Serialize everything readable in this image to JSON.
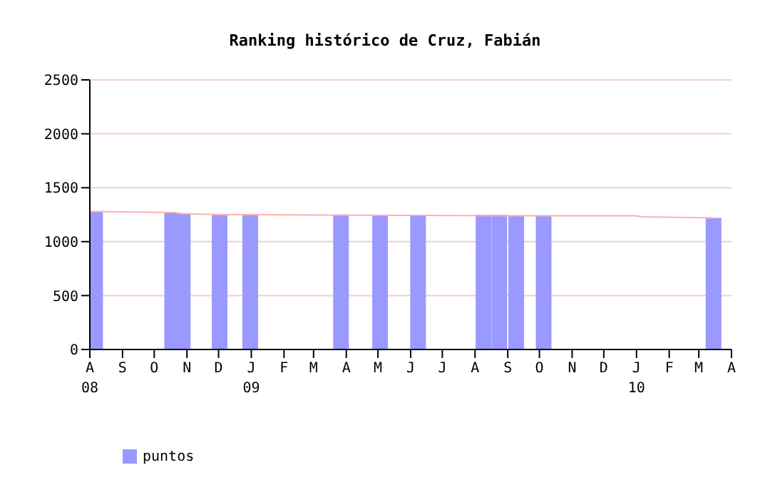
{
  "chart_data": {
    "type": "bar",
    "title": "Ranking histórico de Cruz, Fabián",
    "series": [
      {
        "name": "puntos",
        "color": "#9999ff",
        "x": [
          "2008-08-06",
          "2008-10-18",
          "2008-10-28",
          "2008-12-02",
          "2008-12-31",
          "2009-03-27",
          "2009-05-03",
          "2009-06-08",
          "2009-08-09",
          "2009-08-24",
          "2009-09-09",
          "2009-10-05",
          "2010-03-15"
        ],
        "values": [
          1280,
          1270,
          1260,
          1250,
          1250,
          1250,
          1250,
          1250,
          1250,
          1250,
          1240,
          1240,
          1220
        ]
      },
      {
        "type": "line",
        "color": "#ffb0b0",
        "x": [
          "2008-08-01",
          "2008-10-20",
          "2008-10-27",
          "2008-12-02",
          "2008-12-31",
          "2009-09-09",
          "2009-12-31",
          "2010-01-06",
          "2010-03-15"
        ],
        "values": [
          1280,
          1270,
          1260,
          1250,
          1250,
          1240,
          1240,
          1230,
          1220
        ]
      }
    ],
    "xlim": [
      "2008-08-01",
      "2010-04-01"
    ],
    "xticks": [
      {
        "value": "2008-08-01",
        "label": "A\n08"
      },
      {
        "value": "2008-09-01",
        "label": "S"
      },
      {
        "value": "2008-10-01",
        "label": "O"
      },
      {
        "value": "2008-11-01",
        "label": "N"
      },
      {
        "value": "2008-12-01",
        "label": "D"
      },
      {
        "value": "2009-01-01",
        "label": "J\n09"
      },
      {
        "value": "2009-02-01",
        "label": "F"
      },
      {
        "value": "2009-03-01",
        "label": "M"
      },
      {
        "value": "2009-04-01",
        "label": "A"
      },
      {
        "value": "2009-05-01",
        "label": "M"
      },
      {
        "value": "2009-06-01",
        "label": "J"
      },
      {
        "value": "2009-07-01",
        "label": "J"
      },
      {
        "value": "2009-08-01",
        "label": "A"
      },
      {
        "value": "2009-09-01",
        "label": "S"
      },
      {
        "value": "2009-10-01",
        "label": "O"
      },
      {
        "value": "2009-11-01",
        "label": "N"
      },
      {
        "value": "2009-12-01",
        "label": "D"
      },
      {
        "value": "2010-01-01",
        "label": "J\n10"
      },
      {
        "value": "2010-02-01",
        "label": "F"
      },
      {
        "value": "2010-03-01",
        "label": "M"
      },
      {
        "value": "2010-04-01",
        "label": "A"
      }
    ],
    "ylim": [
      0,
      2500
    ],
    "yticks": [
      0,
      500,
      1000,
      1500,
      2000,
      2500
    ],
    "grid": "y",
    "legend": "bottom left"
  }
}
